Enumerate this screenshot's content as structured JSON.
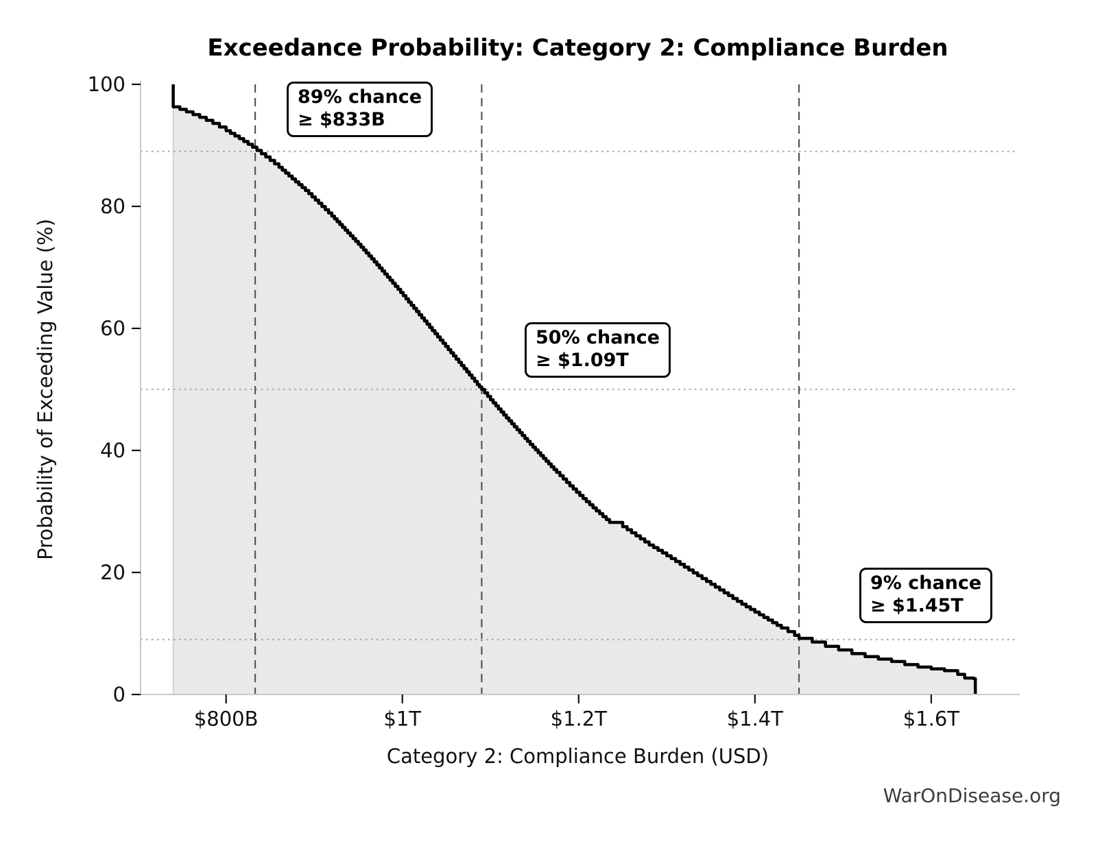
{
  "page": {
    "watermark": "WarOnDisease.org"
  },
  "chart_data": {
    "type": "area",
    "title": "Exceedance Probability: Category 2: Compliance Burden",
    "xlabel": "Category 2: Compliance Burden (USD)",
    "ylabel": "Probability of Exceeding Value (%)",
    "x_unit": "billions of USD",
    "xlim_B": [
      703,
      1695
    ],
    "ylim_pct": [
      0,
      100
    ],
    "grid": "dotted horizontal lines at marker probabilities; dashed vertical lines at marker values",
    "legend": "none",
    "x_ticks": [
      {
        "value": 800,
        "label": "$800B"
      },
      {
        "value": 1000,
        "label": "$1T"
      },
      {
        "value": 1200,
        "label": "$1.2T"
      },
      {
        "value": 1400,
        "label": "$1.4T"
      },
      {
        "value": 1600,
        "label": "$1.6T"
      }
    ],
    "y_ticks": [
      {
        "value": 0,
        "label": "0"
      },
      {
        "value": 20,
        "label": "20"
      },
      {
        "value": 40,
        "label": "40"
      },
      {
        "value": 60,
        "label": "60"
      },
      {
        "value": 80,
        "label": "80"
      },
      {
        "value": 100,
        "label": "100"
      }
    ],
    "markers": [
      {
        "value_B": 833,
        "probability_pct": 89,
        "label_line1": "89% chance",
        "label_line2": "≥ $833B"
      },
      {
        "value_B": 1090,
        "probability_pct": 50,
        "label_line1": "50% chance",
        "label_line2": "≥ $1.09T"
      },
      {
        "value_B": 1450,
        "probability_pct": 9,
        "label_line1": "9% chance",
        "label_line2": "≥ $1.45T"
      }
    ],
    "curve_points_value_B_vs_pct": [
      [
        740,
        100
      ],
      [
        740,
        96.3
      ],
      [
        755,
        95.5
      ],
      [
        770,
        94.6
      ],
      [
        785,
        93.6
      ],
      [
        800,
        92.4
      ],
      [
        815,
        91.1
      ],
      [
        830,
        89.7
      ],
      [
        845,
        88.1
      ],
      [
        860,
        86.4
      ],
      [
        875,
        84.5
      ],
      [
        890,
        82.6
      ],
      [
        905,
        80.5
      ],
      [
        920,
        78.4
      ],
      [
        935,
        76.1
      ],
      [
        950,
        73.8
      ],
      [
        965,
        71.4
      ],
      [
        980,
        68.9
      ],
      [
        995,
        66.4
      ],
      [
        1010,
        63.8
      ],
      [
        1025,
        61.2
      ],
      [
        1040,
        58.6
      ],
      [
        1055,
        56.0
      ],
      [
        1070,
        53.4
      ],
      [
        1085,
        50.8
      ],
      [
        1090,
        50.0
      ],
      [
        1100,
        48.3
      ],
      [
        1115,
        45.8
      ],
      [
        1130,
        43.4
      ],
      [
        1145,
        41.0
      ],
      [
        1160,
        38.7
      ],
      [
        1175,
        36.4
      ],
      [
        1190,
        34.2
      ],
      [
        1205,
        32.1
      ],
      [
        1220,
        30.1
      ],
      [
        1235,
        28.2
      ],
      [
        1250,
        27.5
      ],
      [
        1265,
        26.0
      ],
      [
        1280,
        24.5
      ],
      [
        1295,
        23.2
      ],
      [
        1310,
        21.8
      ],
      [
        1325,
        20.4
      ],
      [
        1340,
        19.0
      ],
      [
        1355,
        17.6
      ],
      [
        1370,
        16.2
      ],
      [
        1385,
        14.8
      ],
      [
        1400,
        13.5
      ],
      [
        1415,
        12.2
      ],
      [
        1430,
        10.9
      ],
      [
        1445,
        9.7
      ],
      [
        1450,
        9.2
      ],
      [
        1465,
        8.6
      ],
      [
        1480,
        7.9
      ],
      [
        1495,
        7.3
      ],
      [
        1510,
        6.7
      ],
      [
        1525,
        6.2
      ],
      [
        1540,
        5.8
      ],
      [
        1555,
        5.4
      ],
      [
        1570,
        4.9
      ],
      [
        1585,
        4.5
      ],
      [
        1600,
        4.2
      ],
      [
        1615,
        3.9
      ],
      [
        1630,
        3.3
      ],
      [
        1638,
        2.7
      ],
      [
        1648,
        2.6
      ],
      [
        1650,
        2.6
      ],
      [
        1650,
        0
      ]
    ],
    "colors": {
      "curve": "#000000",
      "fill": "#e9e9e9",
      "fill_edge": "#c9c9c9",
      "dashed_marker": "#555555",
      "dotted_gridline": "#aaaaaa",
      "spine": "#c9c9c9",
      "tick_text": "#111111",
      "watermark_text": "#3d3d3d"
    }
  }
}
